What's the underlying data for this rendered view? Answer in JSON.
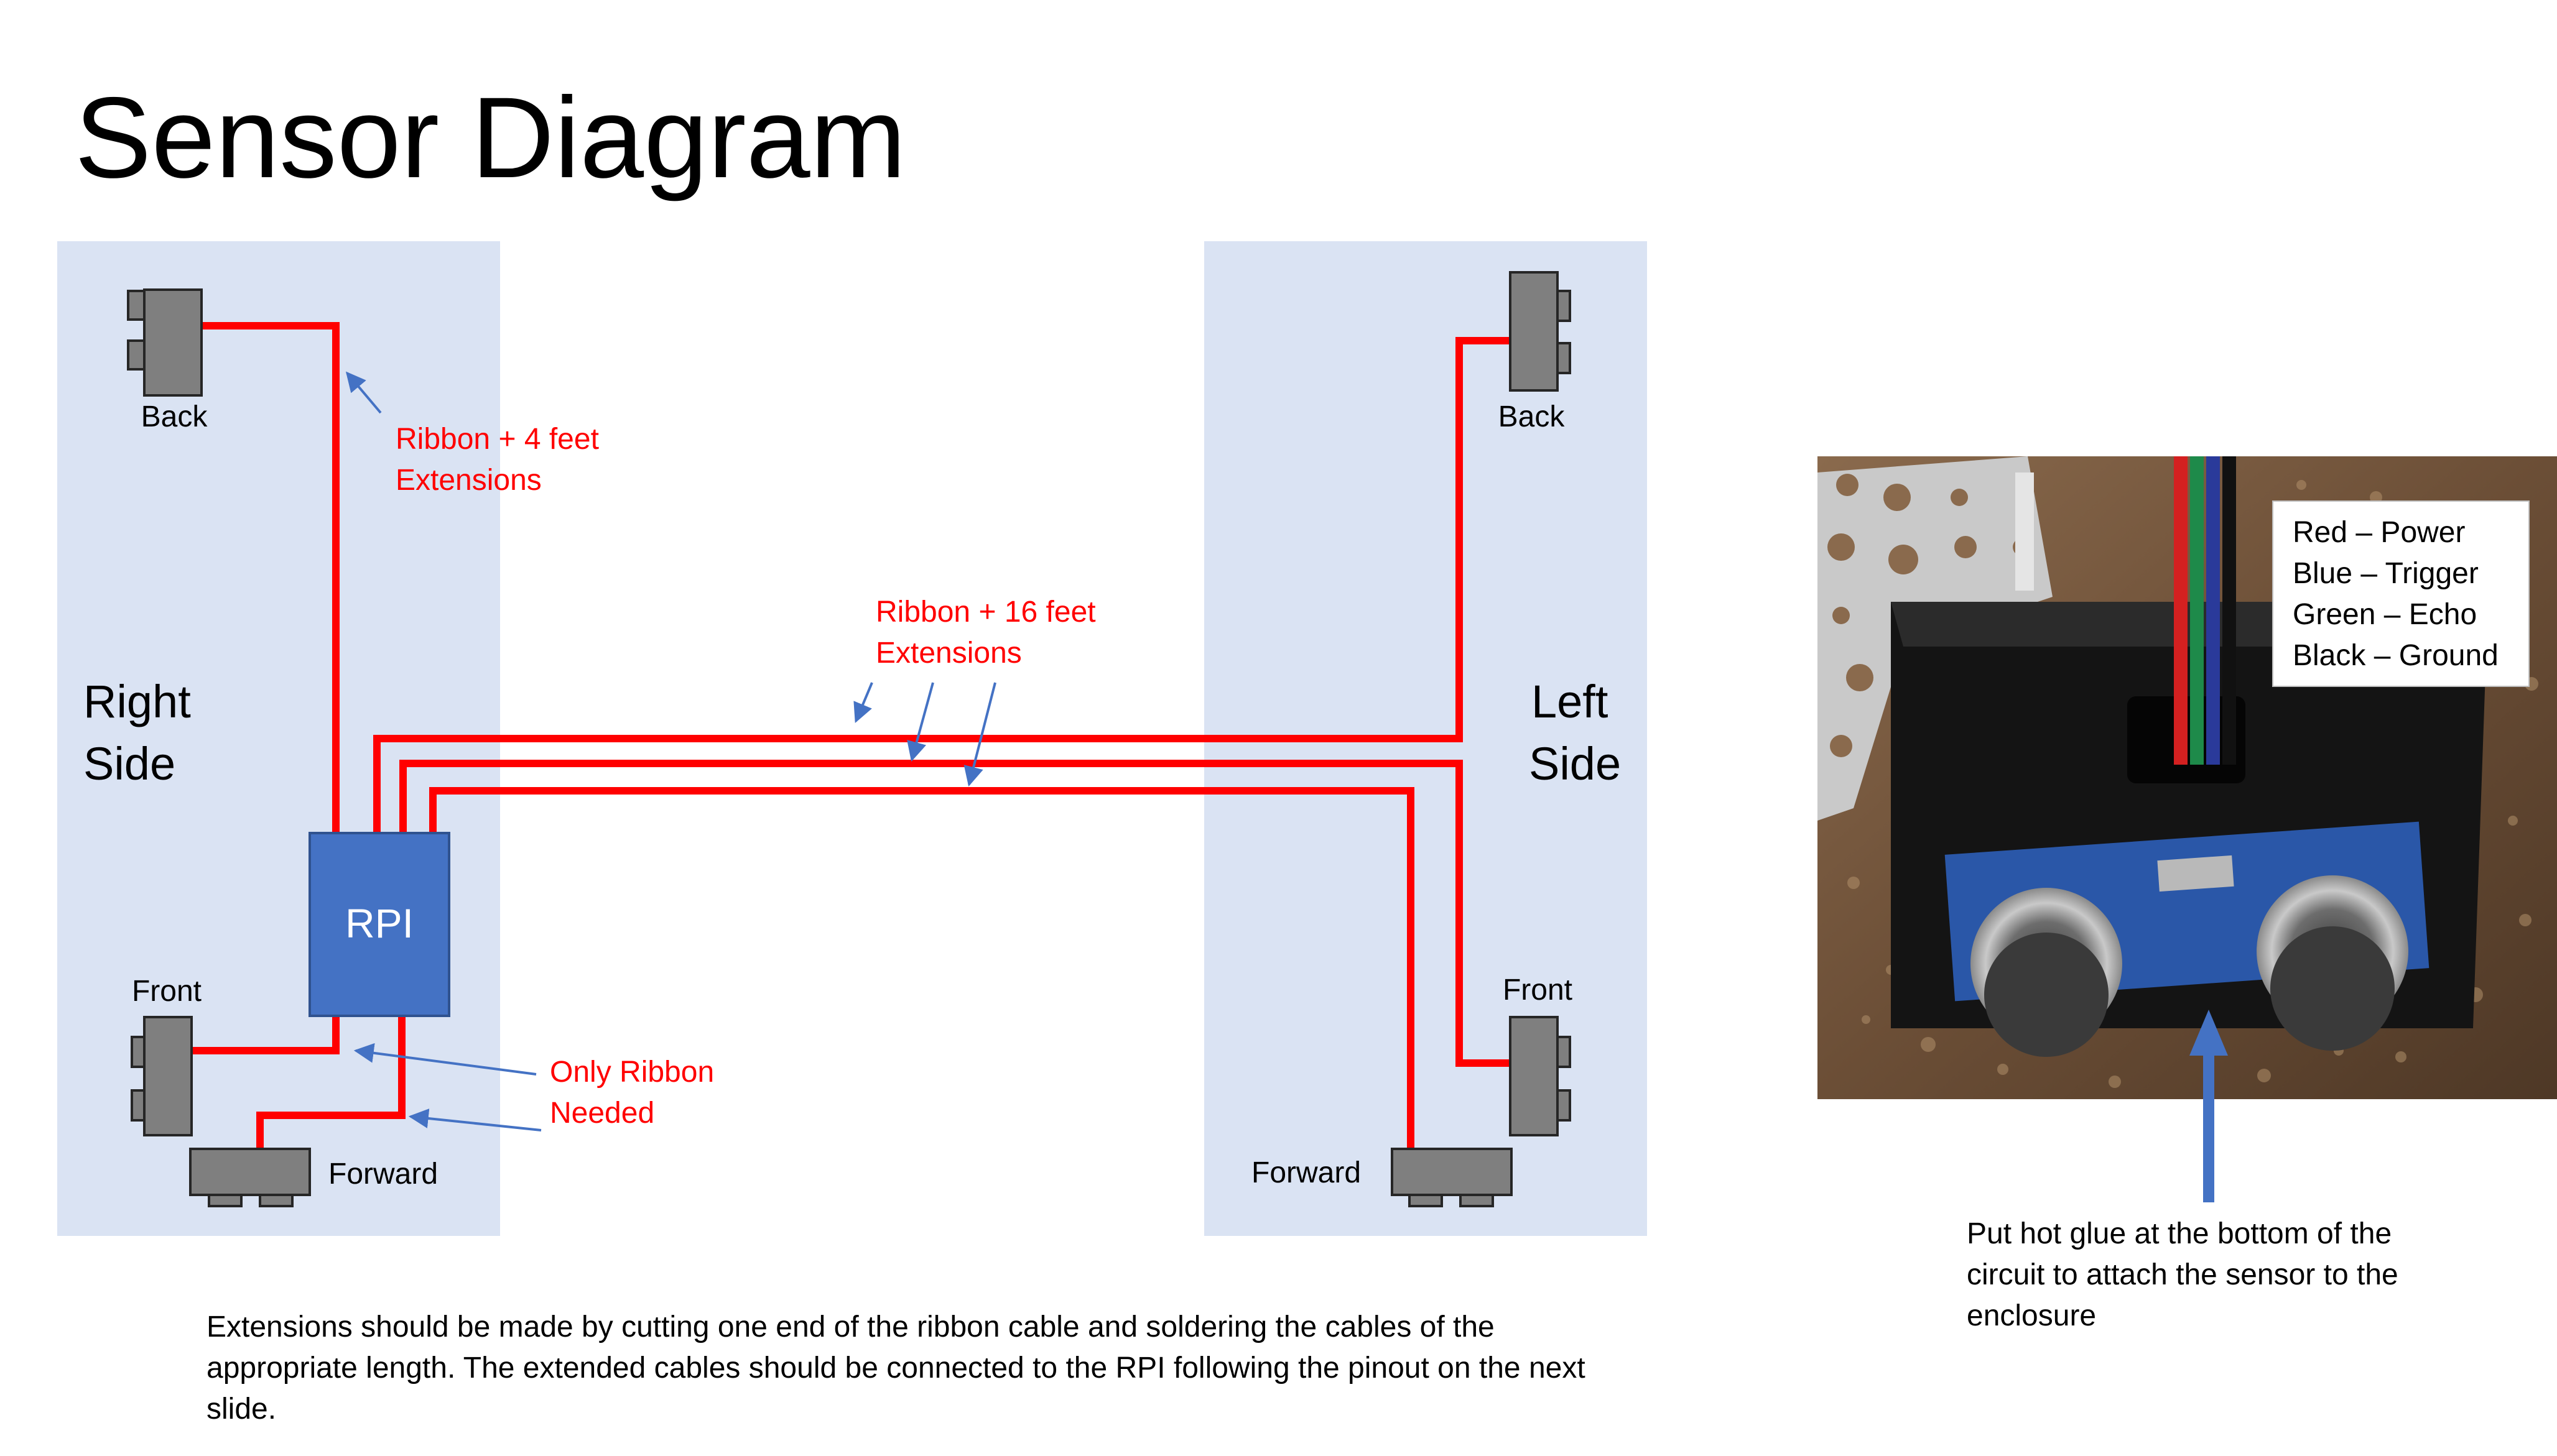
{
  "title": "Sensor Diagram",
  "left_panel": {
    "side_label_line1": "Right",
    "side_label_line2": "Side",
    "sensors": {
      "back": "Back",
      "front": "Front",
      "forward": "Forward"
    },
    "controller": "RPI"
  },
  "right_panel": {
    "side_label_line1": "Left",
    "side_label_line2": "Side",
    "sensors": {
      "back": "Back",
      "front": "Front",
      "forward": "Forward"
    }
  },
  "annotations": {
    "ribbon_4ft": [
      "Ribbon + 4 feet",
      "Extensions"
    ],
    "ribbon_16ft": [
      "Ribbon + 16 feet",
      "Extensions"
    ],
    "only_ribbon": [
      "Only Ribbon",
      "Needed"
    ]
  },
  "photo_legend": [
    "Red – Power",
    "Blue – Trigger",
    "Green – Echo",
    "Black – Ground"
  ],
  "glue_note": "Put hot glue at the bottom of the circuit to attach the sensor to the enclosure",
  "caption": "Extensions should be made by cutting one end of the ribbon cable and soldering the cables of the appropriate length. The extended cables should be connected to the RPI following the pinout on the next slide.",
  "colors": {
    "panel_bg": "#dae3f3",
    "wire": "#ff0000",
    "rpi": "#4472c4",
    "sensor": "#7f7f7f",
    "arrow": "#4472c4",
    "annotation_text": "#ff0000"
  },
  "icons": {
    "sensor": "ultrasonic-sensor-block",
    "photo": "ultrasonic-sensor-enclosure-photo"
  }
}
